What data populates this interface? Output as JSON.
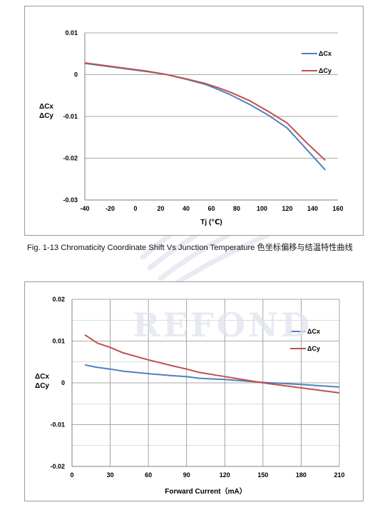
{
  "caption": "Fig. 1-13 Chromaticity Coordinate Shift Vs Junction Temperature 色坐标偏移与结温特性曲线",
  "watermark_text": "REFOND",
  "chart_data": [
    {
      "type": "line",
      "xlabel": "Tj (℃)",
      "ylabel": [
        "ΔCx",
        "ΔCy"
      ],
      "xlim": [
        -40,
        160
      ],
      "ylim": [
        -0.03,
        0.01
      ],
      "xticks": [
        "-40",
        "-20",
        "0",
        "20",
        "40",
        "60",
        "80",
        "100",
        "120",
        "140",
        "160"
      ],
      "xtick_values": [
        -40,
        -20,
        0,
        20,
        40,
        60,
        80,
        100,
        120,
        140,
        160
      ],
      "yticks": [
        "0.01",
        "0",
        "-0.01",
        "-0.02",
        "-0.03"
      ],
      "ytick_values": [
        0.01,
        0,
        -0.01,
        -0.02,
        -0.03
      ],
      "grid": "horizontal",
      "legend": "top-right",
      "series": [
        {
          "name": "ΔCx",
          "color": "#4f81bd",
          "x": [
            -40,
            -20,
            0,
            10,
            25,
            40,
            55,
            65,
            75,
            90,
            105,
            120,
            135,
            150
          ],
          "y": [
            0.0027,
            0.0019,
            0.0011,
            0.0007,
            0,
            -0.0011,
            -0.0023,
            -0.0035,
            -0.0048,
            -0.0071,
            -0.0097,
            -0.0128,
            -0.0178,
            -0.0228
          ]
        },
        {
          "name": "ΔCy",
          "color": "#c0504d",
          "x": [
            -40,
            -20,
            0,
            10,
            25,
            40,
            55,
            65,
            75,
            90,
            105,
            120,
            135,
            150
          ],
          "y": [
            0.0028,
            0.002,
            0.0012,
            0.0008,
            0,
            -0.001,
            -0.0021,
            -0.0031,
            -0.0042,
            -0.0062,
            -0.0088,
            -0.0116,
            -0.0162,
            -0.0205
          ]
        }
      ]
    },
    {
      "type": "line",
      "xlabel": "Forward Current（mA）",
      "ylabel": [
        "ΔCx",
        "ΔCy"
      ],
      "xlim": [
        0,
        210
      ],
      "ylim": [
        -0.02,
        0.02
      ],
      "xticks": [
        "0",
        "30",
        "60",
        "90",
        "120",
        "150",
        "180",
        "210"
      ],
      "xtick_values": [
        0,
        30,
        60,
        90,
        120,
        150,
        180,
        210
      ],
      "yticks": [
        "0.02",
        "0.01",
        "0",
        "-0.01",
        "-0.02"
      ],
      "ytick_values": [
        0.02,
        0.01,
        0,
        -0.01,
        -0.02
      ],
      "grid": "both",
      "legend": "top-right",
      "series": [
        {
          "name": "ΔCx",
          "color": "#4f81bd",
          "x": [
            10,
            20,
            30,
            40,
            60,
            80,
            90,
            100,
            120,
            150,
            180,
            210
          ],
          "y": [
            0.0043,
            0.0037,
            0.0033,
            0.0028,
            0.0022,
            0.0017,
            0.0015,
            0.0011,
            0.0008,
            0.0001,
            -0.0004,
            -0.001
          ]
        },
        {
          "name": "ΔCy",
          "color": "#c0504d",
          "x": [
            10,
            20,
            30,
            40,
            60,
            80,
            90,
            100,
            120,
            150,
            180,
            210
          ],
          "y": [
            0.0115,
            0.0095,
            0.0085,
            0.0072,
            0.0055,
            0.004,
            0.0033,
            0.0025,
            0.0015,
            0,
            -0.0012,
            -0.0024
          ]
        }
      ]
    }
  ]
}
